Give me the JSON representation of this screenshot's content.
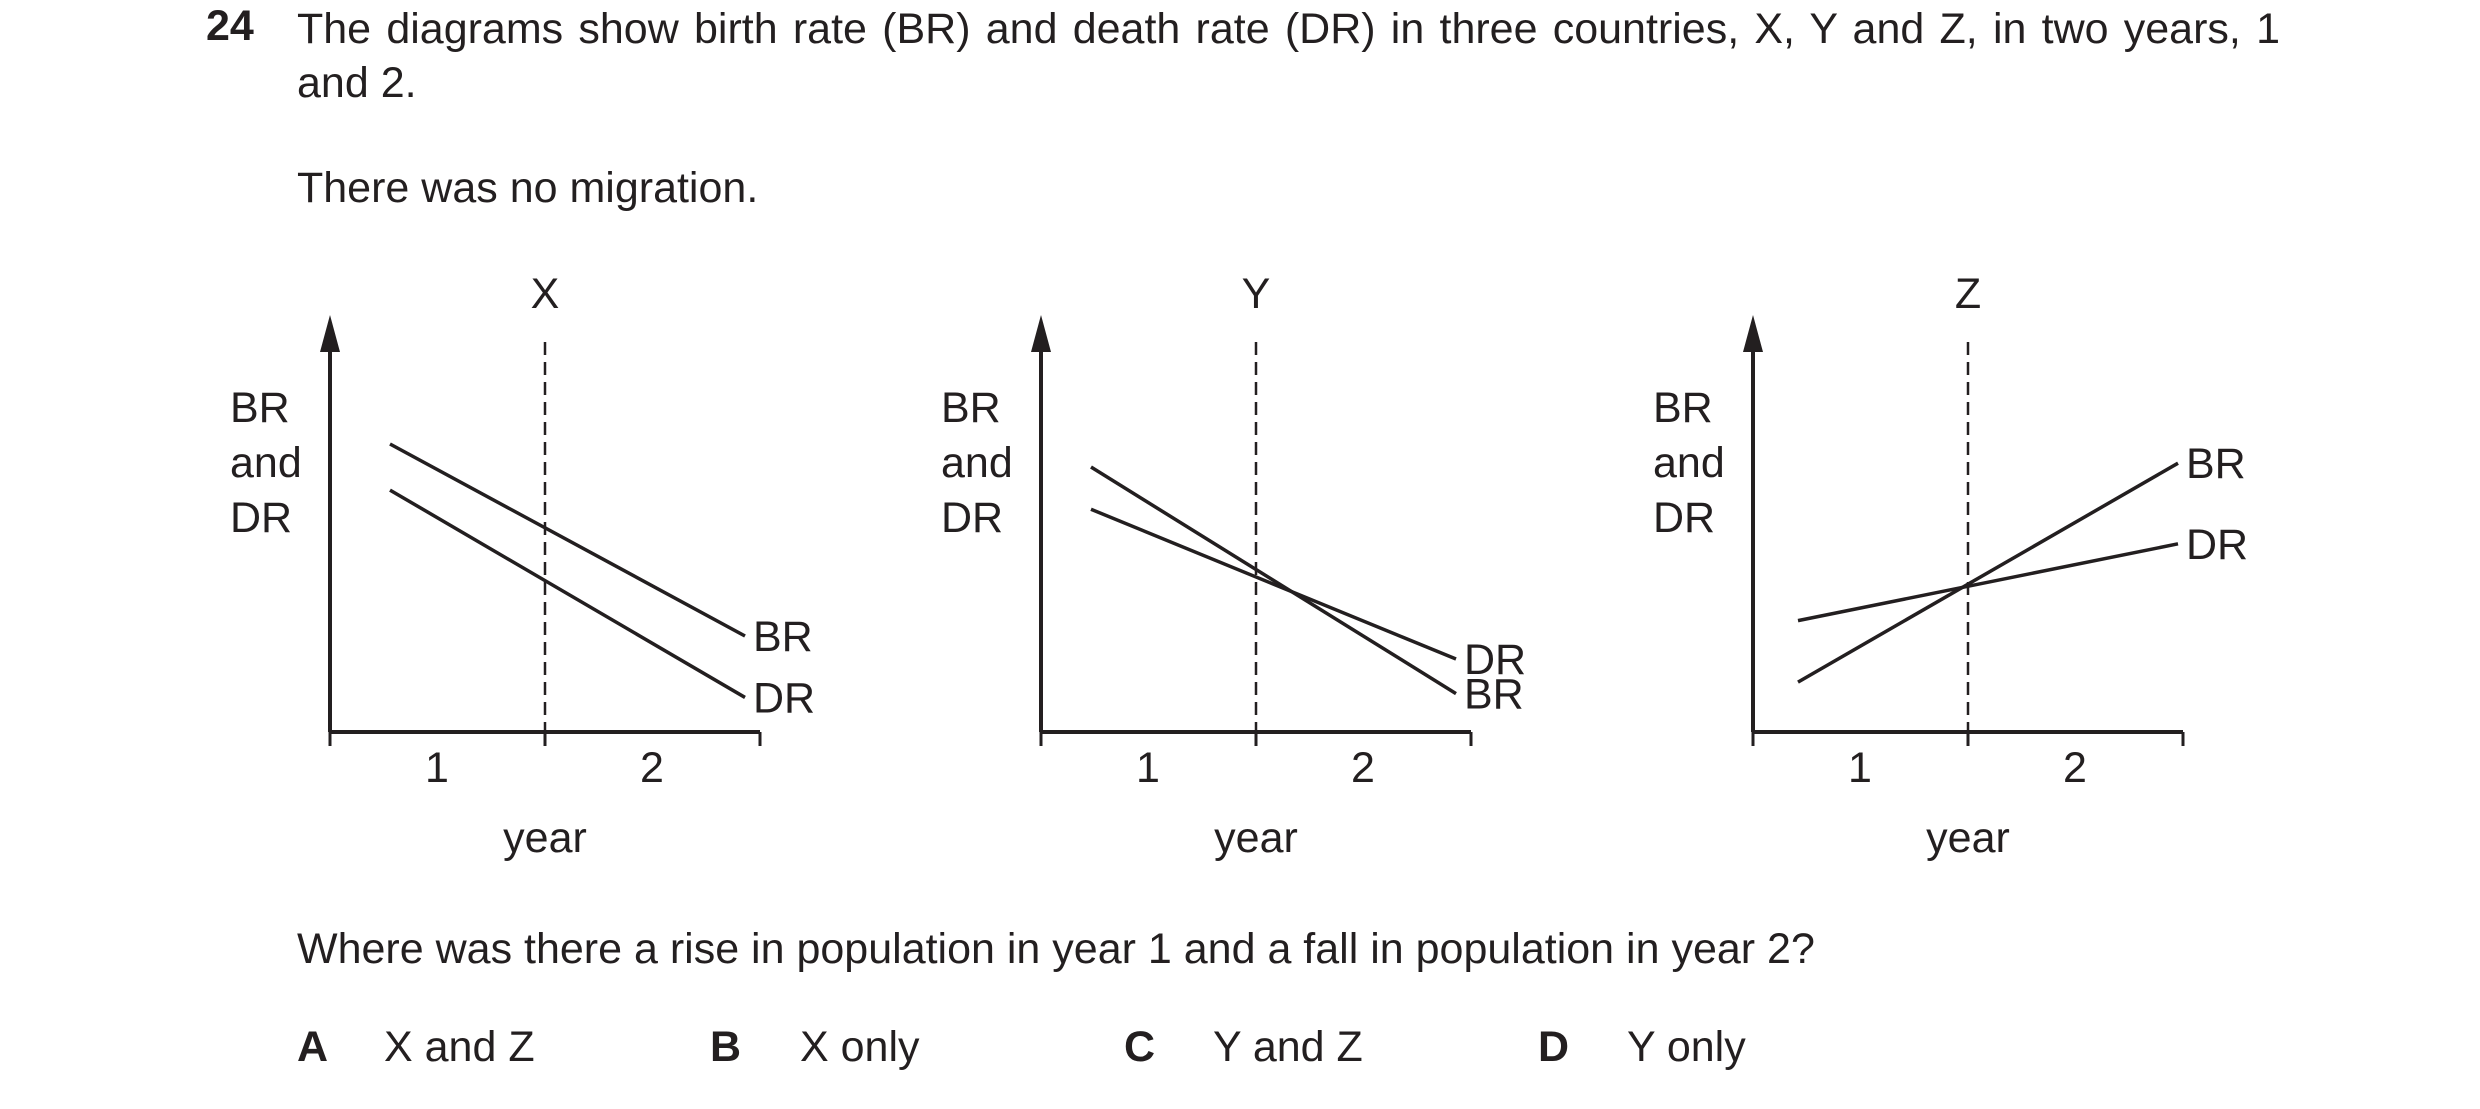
{
  "question": {
    "number": "24",
    "stem": "The diagrams show birth rate (BR) and death rate (DR) in three countries, X, Y and Z, in two years, 1 and 2.",
    "note": "There was no migration.",
    "prompt": "Where was there a rise in population in year 1 and a fall in population in year 2?"
  },
  "options": [
    {
      "letter": "A",
      "text": "X and Z"
    },
    {
      "letter": "B",
      "text": "X only"
    },
    {
      "letter": "C",
      "text": "Y and Z"
    },
    {
      "letter": "D",
      "text": "Y only"
    }
  ],
  "chart_data": [
    {
      "type": "line",
      "title": "X",
      "ylabel": [
        "BR",
        "and",
        "DR"
      ],
      "xlabel": "year",
      "x_ticks": [
        "1",
        "2"
      ],
      "series": [
        {
          "name": "BR",
          "trend": "falling",
          "start": 0.75,
          "end": 0.25
        },
        {
          "name": "DR",
          "trend": "falling",
          "start": 0.63,
          "end": 0.09
        }
      ],
      "note": "BR above DR in both years"
    },
    {
      "type": "line",
      "title": "Y",
      "ylabel": [
        "BR",
        "and",
        "DR"
      ],
      "xlabel": "year",
      "x_ticks": [
        "1",
        "2"
      ],
      "series": [
        {
          "name": "DR",
          "trend": "falling",
          "start": 0.58,
          "end": 0.19
        },
        {
          "name": "BR",
          "trend": "falling",
          "start": 0.69,
          "end": 0.1
        }
      ],
      "note": "BR above DR in year 1, below DR in year 2; lines cross at the year boundary"
    },
    {
      "type": "line",
      "title": "Z",
      "ylabel": [
        "BR",
        "and",
        "DR"
      ],
      "xlabel": "year",
      "x_ticks": [
        "1",
        "2"
      ],
      "series": [
        {
          "name": "BR",
          "trend": "rising",
          "start": 0.13,
          "end": 0.7
        },
        {
          "name": "DR",
          "trend": "rising",
          "start": 0.29,
          "end": 0.49
        }
      ],
      "note": "DR above BR in year 1, below BR in year 2; lines cross at the year boundary"
    }
  ]
}
